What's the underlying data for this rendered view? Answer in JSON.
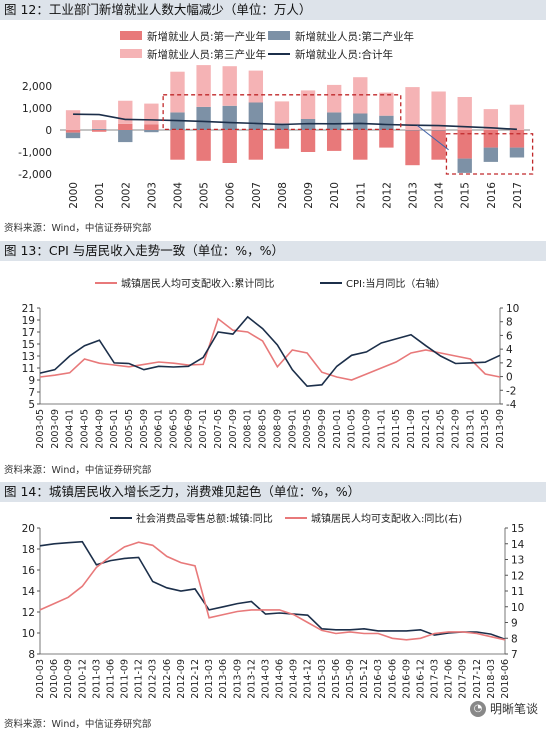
{
  "charts": [
    {
      "title": "图 12：工业部门新增就业人数大幅减少（单位：万人）",
      "source": "资料来源：Wind，中信证券研究部",
      "chart_data": {
        "type": "bar",
        "categories": [
          "2000",
          "2001",
          "2002",
          "2003",
          "2004",
          "2005",
          "2006",
          "2007",
          "2008",
          "2009",
          "2010",
          "2011",
          "2012",
          "2013",
          "2014",
          "2015",
          "2016",
          "2017"
        ],
        "ylim": [
          -2000,
          2000
        ],
        "yticks": [
          -2000,
          -1000,
          0,
          1000,
          2000
        ],
        "ytick_labels": [
          "-2,000",
          "-1,000",
          "0",
          "1,000",
          "2,000"
        ],
        "legend_position": "top",
        "series": [
          {
            "name": "新增就业人员:第一产业年",
            "type": "bar",
            "color": "#e8797a",
            "values": [
              -120,
              -80,
              280,
              250,
              -1350,
              -1400,
              -1500,
              -1350,
              -850,
              -1000,
              -950,
              -1350,
              -800,
              -1600,
              -1350,
              -1300,
              -800,
              -800
            ]
          },
          {
            "name": "新增就业人员:第二产业年",
            "type": "bar",
            "color": "#7d91a6",
            "values": [
              -250,
              50,
              -550,
              -100,
              800,
              1050,
              1100,
              1250,
              300,
              500,
              800,
              750,
              650,
              0,
              0,
              -650,
              -650,
              -450
            ]
          },
          {
            "name": "新增就业人员:第三产业年",
            "type": "bar",
            "color": "#f5b3b5",
            "values": [
              900,
              400,
              1050,
              950,
              1850,
              1900,
              1800,
              1450,
              1000,
              1300,
              1250,
              1650,
              1050,
              1950,
              1750,
              1500,
              950,
              1150
            ]
          },
          {
            "name": "新增就业人员:合计年",
            "type": "line",
            "color": "#1c2f4a",
            "values": [
              720,
              700,
              480,
              460,
              430,
              390,
              340,
              300,
              250,
              290,
              280,
              300,
              250,
              220,
              200,
              150,
              100,
              30
            ]
          }
        ]
      }
    },
    {
      "title": "图 13：CPI 与居民收入走势一致（单位：%，%）",
      "source": "资料来源：Wind，中信证券研究部",
      "chart_data": {
        "type": "line",
        "categories": [
          "2003-05",
          "2003-09",
          "2004-01",
          "2004-05",
          "2004-09",
          "2005-01",
          "2005-05",
          "2005-09",
          "2006-01",
          "2006-05",
          "2006-09",
          "2007-01",
          "2007-05",
          "2007-09",
          "2008-01",
          "2008-05",
          "2008-09",
          "2009-01",
          "2009-05",
          "2009-09",
          "2010-01",
          "2010-05",
          "2010-09",
          "2011-01",
          "2011-05",
          "2011-09",
          "2012-01",
          "2012-05",
          "2012-09",
          "2013-01",
          "2013-05",
          "2013-09"
        ],
        "ylim": [
          5,
          21
        ],
        "yticks": [
          5,
          7,
          9,
          11,
          13,
          15,
          17,
          19,
          21
        ],
        "y2lim": [
          -4,
          10
        ],
        "y2ticks": [
          -4,
          -2,
          0,
          2,
          4,
          6,
          8,
          10
        ],
        "legend_position": "top",
        "series": [
          {
            "name": "城镇居民人均可支配收入:累计同比",
            "axis": "left",
            "color": "#e8797a",
            "values": [
              9.5,
              9.8,
              10.2,
              12.5,
              11.8,
              11.5,
              11.2,
              11.6,
              12.0,
              11.8,
              11.5,
              11.6,
              19.2,
              17.3,
              17.0,
              15.5,
              11.2,
              14.0,
              13.5,
              10.3,
              9.5,
              9.0,
              10.0,
              11.0,
              12.0,
              13.5,
              14.0,
              13.5,
              13.0,
              12.5,
              10.0,
              9.5
            ]
          },
          {
            "name": "CPI:当月同比（右轴）",
            "axis": "right",
            "color": "#1c2f4a",
            "values": [
              0.5,
              1.0,
              3.0,
              4.5,
              5.3,
              2.0,
              1.9,
              1.0,
              1.5,
              1.4,
              1.5,
              2.8,
              6.5,
              6.2,
              8.7,
              7.0,
              4.6,
              1.0,
              -1.4,
              -1.2,
              1.5,
              3.1,
              3.6,
              4.9,
              5.5,
              6.1,
              4.5,
              3.0,
              1.9,
              2.0,
              2.1,
              3.1
            ]
          }
        ]
      }
    },
    {
      "title": "图 14：城镇居民收入增长乏力，消费难见起色（单位：%，%）",
      "source": "资料来源：Wind，中信证券研究部",
      "watermark": "明晰笔谈",
      "chart_data": {
        "type": "line",
        "categories": [
          "2010-03",
          "2010-06",
          "2010-09",
          "2010-12",
          "2011-03",
          "2011-06",
          "2011-09",
          "2011-12",
          "2012-03",
          "2012-06",
          "2012-09",
          "2012-12",
          "2013-03",
          "2013-06",
          "2013-09",
          "2013-12",
          "2014-03",
          "2014-06",
          "2014-09",
          "2014-12",
          "2015-03",
          "2015-06",
          "2015-09",
          "2015-12",
          "2016-03",
          "2016-06",
          "2016-09",
          "2016-12",
          "2017-03",
          "2017-06",
          "2017-09",
          "2017-12",
          "2018-03",
          "2018-06"
        ],
        "ylim": [
          8,
          20
        ],
        "yticks": [
          8,
          10,
          12,
          14,
          16,
          18,
          20
        ],
        "y2lim": [
          7,
          15
        ],
        "y2ticks": [
          7,
          8,
          9,
          10,
          11,
          12,
          13,
          14,
          15
        ],
        "legend_position": "top",
        "series": [
          {
            "name": "社会消费品零售总额:城镇:同比",
            "axis": "left",
            "color": "#1c2f4a",
            "values": [
              18.3,
              18.5,
              18.6,
              18.7,
              16.5,
              16.9,
              17.1,
              17.2,
              14.9,
              14.3,
              14.0,
              14.2,
              12.2,
              12.5,
              12.8,
              13.0,
              11.8,
              11.9,
              11.8,
              11.7,
              10.4,
              10.3,
              10.3,
              10.4,
              10.2,
              10.2,
              10.2,
              10.3,
              9.8,
              10.0,
              10.1,
              10.1,
              9.9,
              9.4
            ]
          },
          {
            "name": "城镇居民人均可支配收入:同比(右)",
            "axis": "right",
            "color": "#e8797a",
            "values": [
              9.8,
              10.2,
              10.6,
              11.3,
              12.5,
              13.2,
              13.8,
              14.1,
              13.9,
              13.2,
              12.8,
              12.6,
              9.3,
              9.5,
              9.7,
              9.8,
              9.8,
              9.8,
              9.5,
              9.0,
              8.5,
              8.3,
              8.4,
              8.3,
              8.3,
              8.0,
              7.9,
              8.0,
              8.3,
              8.4,
              8.4,
              8.3,
              8.1,
              7.9
            ]
          }
        ]
      }
    }
  ]
}
